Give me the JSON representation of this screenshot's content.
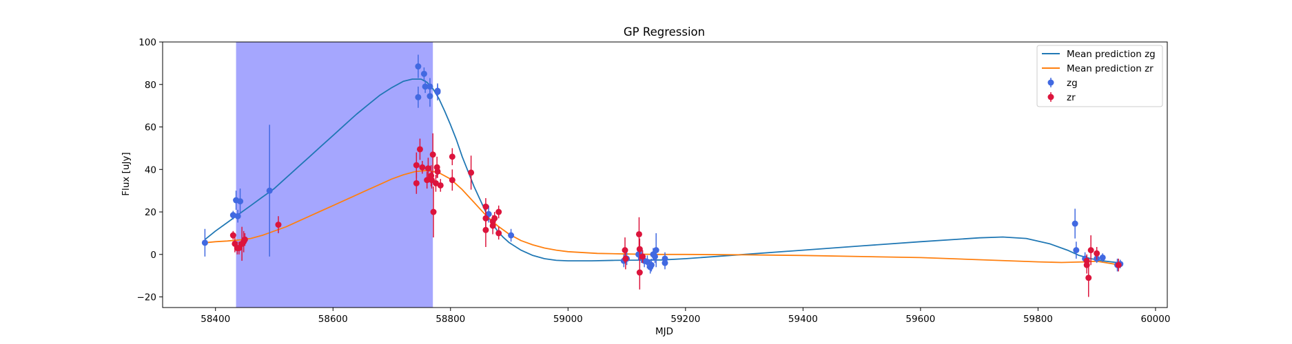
{
  "chart_data": {
    "type": "scatter",
    "title": "GP Regression",
    "xlabel": "MJD",
    "ylabel": "Flux [uJy]",
    "xlim": [
      58310,
      60020
    ],
    "ylim": [
      -25,
      100
    ],
    "xticks": [
      58400,
      58600,
      58800,
      59000,
      59200,
      59400,
      59600,
      59800,
      60000
    ],
    "yticks": [
      -20,
      0,
      20,
      40,
      60,
      80,
      100
    ],
    "legend": {
      "placement": "top-right",
      "entries": [
        "Mean prediction zg",
        "Mean prediction zr",
        "zg",
        "zr"
      ]
    },
    "shaded_region": {
      "x_start": 58435,
      "x_end": 58770,
      "color": "#a5a6fe"
    },
    "lines": [
      {
        "name": "Mean prediction zg",
        "color": "#1f77b4",
        "x": [
          58382,
          58400,
          58420,
          58440,
          58460,
          58480,
          58500,
          58520,
          58540,
          58560,
          58580,
          58600,
          58620,
          58640,
          58660,
          58680,
          58700,
          58720,
          58735,
          58750,
          58760,
          58770,
          58780,
          58790,
          58800,
          58810,
          58820,
          58830,
          58840,
          58850,
          58860,
          58870,
          58880,
          58890,
          58900,
          58920,
          58940,
          58960,
          58980,
          59000,
          59040,
          59080,
          59120,
          59160,
          59200,
          59300,
          59400,
          59500,
          59600,
          59700,
          59740,
          59780,
          59820,
          59850,
          59870,
          59890,
          59910,
          59940
        ],
        "y": [
          7,
          11,
          15,
          19,
          23,
          27,
          31,
          36,
          41,
          46,
          51,
          56,
          61,
          66,
          70.5,
          75,
          78.5,
          81.5,
          82.5,
          82.5,
          81,
          78,
          73.5,
          67.5,
          61,
          54,
          46,
          39,
          32,
          26,
          20,
          15,
          11,
          8,
          5.5,
          2,
          -0.5,
          -2,
          -2.8,
          -3,
          -3,
          -2.8,
          -2.7,
          -2.6,
          -2,
          0,
          2,
          4,
          6,
          7.8,
          8.2,
          7.5,
          5,
          2,
          -0.5,
          -2,
          -3,
          -4
        ]
      },
      {
        "name": "Mean prediction zr",
        "color": "#ff7f0e",
        "x": [
          58382,
          58400,
          58420,
          58440,
          58460,
          58480,
          58500,
          58520,
          58540,
          58560,
          58580,
          58600,
          58620,
          58640,
          58660,
          58680,
          58700,
          58720,
          58740,
          58760,
          58780,
          58800,
          58820,
          58840,
          58860,
          58880,
          58900,
          58920,
          58940,
          58960,
          58980,
          59000,
          59050,
          59100,
          59150,
          59200,
          59300,
          59400,
          59500,
          59600,
          59700,
          59800,
          59840,
          59880,
          59900,
          59940
        ],
        "y": [
          5.5,
          6,
          6.3,
          6.8,
          7.5,
          9,
          11,
          13,
          15.5,
          18,
          20.5,
          23,
          25.5,
          28,
          30.5,
          33,
          35.5,
          37.5,
          39,
          39.5,
          38.5,
          35.5,
          30.5,
          24.5,
          18.5,
          13.5,
          9.5,
          6.5,
          4.5,
          3,
          2,
          1.3,
          0.5,
          0.2,
          0,
          0,
          -0.2,
          -0.5,
          -1,
          -1.5,
          -2.5,
          -3.5,
          -3.8,
          -3.5,
          -3.2,
          -5
        ]
      }
    ],
    "series": [
      {
        "name": "zg",
        "color": "#4169e1",
        "points": [
          [
            58382,
            5.5,
            6.5
          ],
          [
            58430,
            18.5,
            2
          ],
          [
            58435,
            25.5,
            4.5
          ],
          [
            58438,
            18,
            3
          ],
          [
            58442,
            25,
            6
          ],
          [
            58492,
            30,
            31
          ],
          [
            58745,
            88.5,
            5.5
          ],
          [
            58745,
            74,
            5
          ],
          [
            58755,
            85,
            3
          ],
          [
            58757,
            79,
            3
          ],
          [
            58765,
            79,
            4
          ],
          [
            58765,
            74.5,
            5
          ],
          [
            58778,
            77,
            3
          ],
          [
            58778,
            76.5,
            4
          ],
          [
            58865,
            19,
            4
          ],
          [
            58903,
            9,
            3
          ],
          [
            59095,
            -3,
            3
          ],
          [
            59100,
            -2,
            3
          ],
          [
            59120,
            0,
            3
          ],
          [
            59125,
            -1,
            3
          ],
          [
            59130,
            -3,
            3
          ],
          [
            59135,
            -3.5,
            3
          ],
          [
            59140,
            -6,
            3
          ],
          [
            59142,
            -5,
            3
          ],
          [
            59145,
            0,
            3
          ],
          [
            59148,
            -1,
            3
          ],
          [
            59150,
            2,
            8
          ],
          [
            59165,
            -2,
            3
          ],
          [
            59165,
            -4,
            3
          ],
          [
            59863,
            14.5,
            7
          ],
          [
            59865,
            2,
            4
          ],
          [
            59880,
            -2,
            3
          ],
          [
            59900,
            -2,
            2
          ],
          [
            59910,
            -1.5,
            2
          ],
          [
            59935,
            -5,
            3
          ],
          [
            59940,
            -4.5,
            2
          ]
        ]
      },
      {
        "name": "zr",
        "color": "#dc143c",
        "points": [
          [
            58430,
            9,
            2
          ],
          [
            58433,
            5,
            4
          ],
          [
            58437,
            3,
            3
          ],
          [
            58440,
            3,
            3
          ],
          [
            58445,
            5,
            8
          ],
          [
            58448,
            6,
            5
          ],
          [
            58450,
            7,
            3
          ],
          [
            58507,
            14,
            4
          ],
          [
            58742,
            42,
            6
          ],
          [
            58742,
            33.5,
            5
          ],
          [
            58748,
            49.5,
            5
          ],
          [
            58752,
            41,
            3
          ],
          [
            58760,
            35,
            4
          ],
          [
            58762,
            40.5,
            5
          ],
          [
            58767,
            37,
            5
          ],
          [
            58768,
            35,
            4
          ],
          [
            58770,
            47,
            10
          ],
          [
            58771,
            20,
            12
          ],
          [
            58775,
            33.5,
            4
          ],
          [
            58777,
            41,
            5
          ],
          [
            58778,
            39,
            3
          ],
          [
            58783,
            32.5,
            3
          ],
          [
            58803,
            46,
            4
          ],
          [
            58803,
            35,
            5
          ],
          [
            58835,
            38.5,
            8
          ],
          [
            58860,
            22.5,
            4
          ],
          [
            58860,
            17,
            6
          ],
          [
            58860,
            11.5,
            8
          ],
          [
            58872,
            15.5,
            3
          ],
          [
            58872,
            13.5,
            4
          ],
          [
            58875,
            17,
            3
          ],
          [
            58882,
            20,
            3
          ],
          [
            58882,
            10,
            3
          ],
          [
            59097,
            2,
            6
          ],
          [
            59098,
            -2,
            5
          ],
          [
            59121,
            9.5,
            8
          ],
          [
            59122,
            2.5,
            5
          ],
          [
            59122,
            -8.5,
            8
          ],
          [
            59127,
            -1,
            3
          ],
          [
            59883,
            -3,
            3
          ],
          [
            59883,
            -5,
            4
          ],
          [
            59886,
            -11,
            9
          ],
          [
            59890,
            2,
            7
          ],
          [
            59900,
            0.5,
            3
          ],
          [
            59937,
            -5,
            3
          ]
        ]
      }
    ]
  }
}
